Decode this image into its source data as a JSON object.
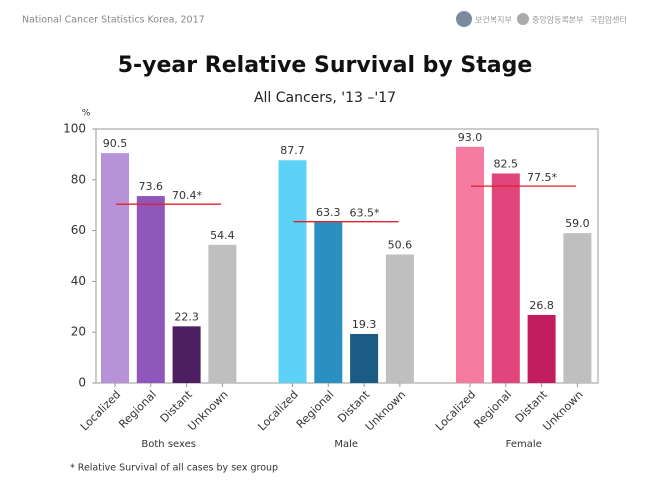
{
  "header": {
    "caption": "National  Cancer  Statistics   Korea, 2017",
    "logos": [
      "보건복지부",
      "중앙암등록본부",
      "국립암센터"
    ]
  },
  "chart_data": {
    "type": "grouped-bar",
    "title": "5-year Relative Survival by Stage",
    "subtitle": "All Cancers, '13 –'17",
    "y_unit": "%",
    "ylim": [
      0,
      100
    ],
    "yticks": [
      0,
      20,
      40,
      60,
      80,
      100
    ],
    "footnote": "* Relative Survival of all cases by sex group",
    "groups": [
      {
        "name": "Both sexes",
        "categories": [
          "Localized",
          "Regional",
          "Distant",
          "Unknown"
        ],
        "values": [
          90.5,
          73.6,
          22.3,
          54.4
        ],
        "value_labels": [
          "90.5",
          "73.6",
          "22.3",
          "54.4"
        ],
        "colors": [
          "#b792d6",
          "#8f57bb",
          "#4b1f60",
          "#bfbfbf"
        ],
        "reference": {
          "value": 70.4,
          "label": "70.4*",
          "color": "#e0202a"
        }
      },
      {
        "name": "Male",
        "categories": [
          "Localized",
          "Regional",
          "Distant",
          "Unknown"
        ],
        "values": [
          87.7,
          63.3,
          19.3,
          50.6
        ],
        "value_labels": [
          "87.7",
          "63.3",
          "19.3",
          "50.6"
        ],
        "colors": [
          "#5dd2f7",
          "#2a90c2",
          "#1b5b84",
          "#bfbfbf"
        ],
        "reference": {
          "value": 63.5,
          "label": "63.5*",
          "color": "#e0202a"
        }
      },
      {
        "name": "Female",
        "categories": [
          "Localized",
          "Regional",
          "Distant",
          "Unknown"
        ],
        "values": [
          93,
          82.5,
          26.8,
          59
        ],
        "value_labels": [
          "93.0",
          "82.5",
          "26.8",
          "59.0"
        ],
        "colors": [
          "#f67ba1",
          "#e0467b",
          "#c21e5f",
          "#bfbfbf"
        ],
        "reference": {
          "value": 77.5,
          "label": "77.5*",
          "color": "#e0202a"
        }
      }
    ]
  }
}
